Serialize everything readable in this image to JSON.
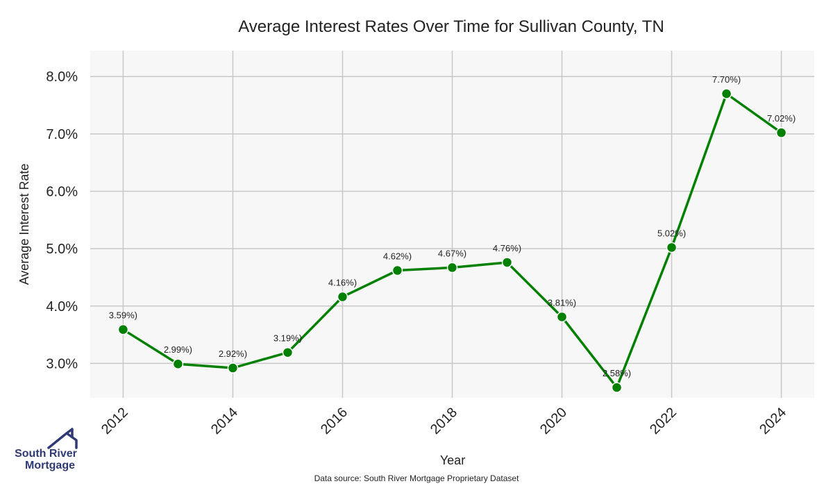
{
  "source_note": "Data source: South River Mortgage Proprietary Dataset",
  "logo": {
    "line1": "South River",
    "line2": "Mortgage",
    "icon": "house-roof-icon",
    "color": "#2e3a73"
  },
  "colors": {
    "series": "#008000",
    "plot_background": "#f7f7f7",
    "grid": "#c8c8c8"
  },
  "chart_data": {
    "type": "line",
    "title": "Average Interest Rates Over Time for Sullivan County, TN",
    "xlabel": "Year",
    "ylabel": "Average Interest Rate",
    "grid": true,
    "legend": "none",
    "x": [
      2012,
      2013,
      2014,
      2015,
      2016,
      2017,
      2018,
      2019,
      2020,
      2021,
      2022,
      2023,
      2024
    ],
    "series": [
      {
        "values": [
          3.59,
          2.99,
          2.92,
          3.19,
          4.16,
          4.62,
          4.67,
          4.76,
          3.81,
          2.58,
          5.02,
          7.7,
          7.02
        ],
        "labels": [
          "3.59%)",
          "2.99%)",
          "2.92%)",
          "3.19%)",
          "4.16%)",
          "4.62%)",
          "4.67%)",
          "4.76%)",
          "3.81%)",
          "2.58%)",
          "5.02%)",
          "7.70%)",
          "7.02%)"
        ]
      }
    ],
    "xticks": [
      2012,
      2014,
      2016,
      2018,
      2020,
      2022,
      2024
    ],
    "xtick_labels": [
      "2012",
      "2014",
      "2016",
      "2018",
      "2020",
      "2022",
      "2024"
    ],
    "yticks": [
      3.0,
      4.0,
      5.0,
      6.0,
      7.0,
      8.0
    ],
    "ytick_labels": [
      "3.0%",
      "4.0%",
      "5.0%",
      "6.0%",
      "7.0%",
      "8.0%"
    ],
    "xlim": [
      2011.4,
      2024.6
    ],
    "ylim": [
      2.4,
      8.45
    ]
  }
}
